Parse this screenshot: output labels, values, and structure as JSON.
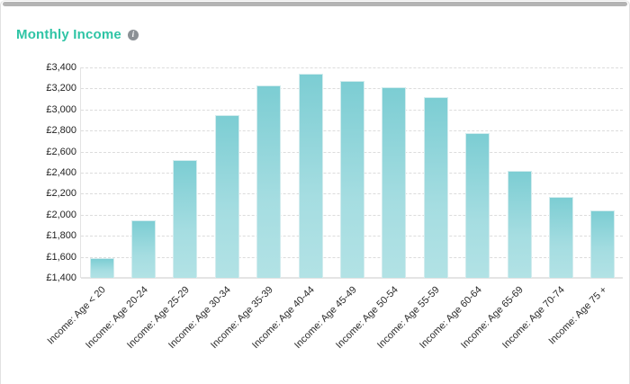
{
  "page": {
    "title": "Monthly Income"
  },
  "icons": {
    "info": "i"
  },
  "colors": {
    "title": "#2ec4a5",
    "bar_top": "#7ccdd3",
    "bar_bottom": "#b2e2e5",
    "gridline": "#dcdcdc",
    "axis_text": "#222222",
    "scrollbar": "#b4b4b4"
  },
  "chart_data": {
    "type": "bar",
    "title": "Monthly Income",
    "categories": [
      "Income: Age < 20",
      "Income: Age 20-24",
      "Income: Age 25-29",
      "Income: Age 30-34",
      "Income: Age 35-39",
      "Income: Age 40-44",
      "Income: Age 45-49",
      "Income: Age 50-54",
      "Income: Age 55-59",
      "Income: Age 60-64",
      "Income: Age 65-69",
      "Income: Age 70-74",
      "Income: Age 75 +"
    ],
    "values": [
      1590,
      1945,
      2520,
      2950,
      3230,
      3340,
      3270,
      3210,
      3120,
      2780,
      2420,
      2170,
      2040
    ],
    "xlabel": "",
    "ylabel": "",
    "ylim": [
      1400,
      3400
    ],
    "ytick_step": 200,
    "ytick_prefix": "£",
    "grid": "horizontal-dashed",
    "legend": "none",
    "x_label_rotation_deg": -45
  }
}
